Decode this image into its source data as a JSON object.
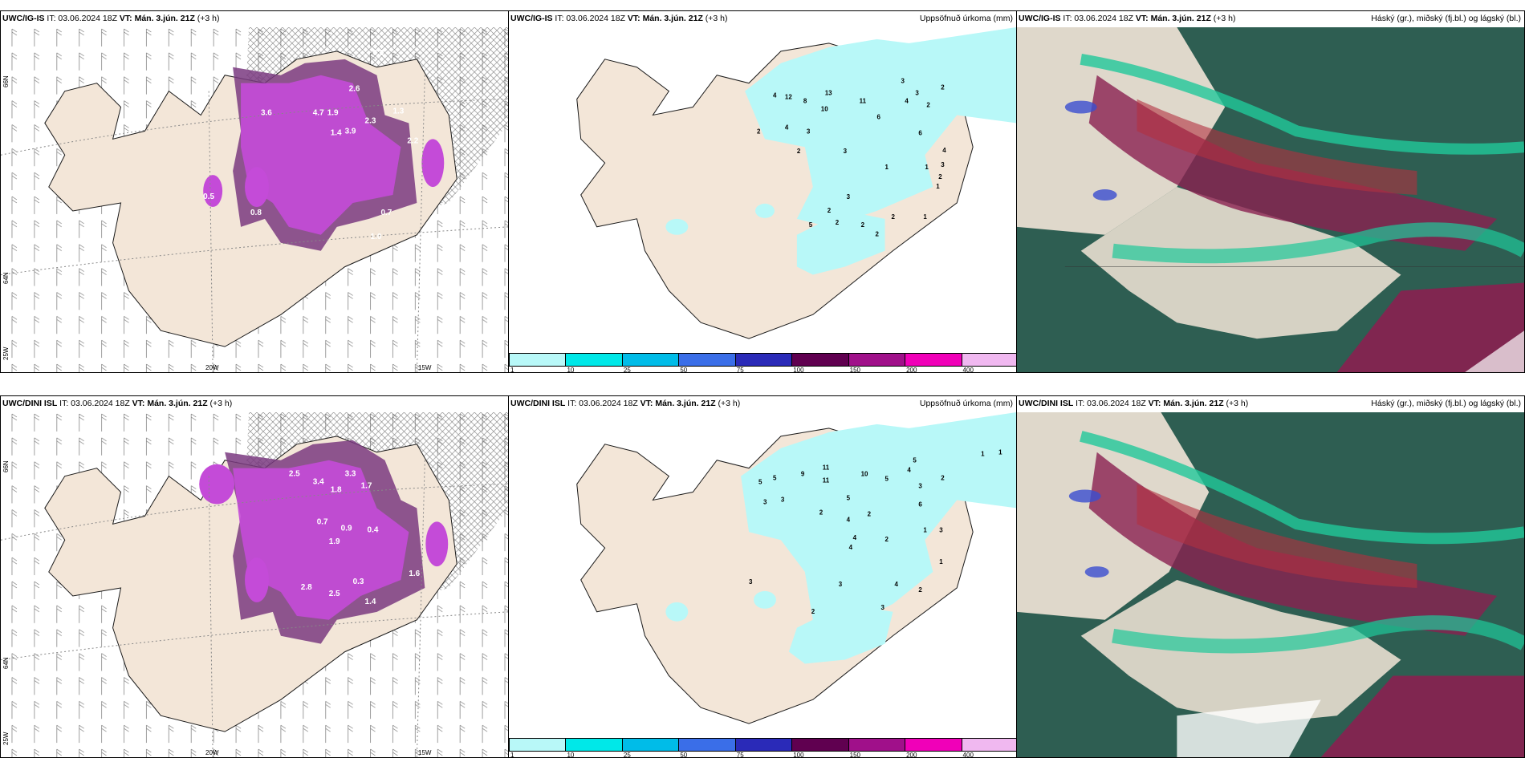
{
  "panels": [
    {
      "model": "UWC/IG-IS",
      "it": "IT: 03.06.2024 18Z",
      "vt": "VT: Mán. 3.jún. 21Z",
      "lead": "(+3 h)",
      "right": ""
    },
    {
      "model": "UWC/IG-IS",
      "it": "IT: 03.06.2024 18Z",
      "vt": "VT: Mán. 3.jún. 21Z",
      "lead": "(+3 h)",
      "right": "Uppsöfnuð úrkoma (mm)"
    },
    {
      "model": "UWC/IG-IS",
      "it": "IT: 03.06.2024 18Z",
      "vt": "VT: Mán. 3.jún. 21Z",
      "lead": "(+3 h)",
      "right": "Háský (gr.), miðský (fj.bl.) og lágský (bl.)"
    },
    {
      "model": "UWC/DINI ISL",
      "it": "IT: 03.06.2024 18Z",
      "vt": "VT: Mán. 3.jún. 21Z",
      "lead": "(+3 h)",
      "right": ""
    },
    {
      "model": "UWC/DINI ISL",
      "it": "IT: 03.06.2024 18Z",
      "vt": "VT: Mán. 3.jún. 21Z",
      "lead": "(+3 h)",
      "right": "Uppsöfnuð úrkoma (mm)"
    },
    {
      "model": "UWC/DINI ISL",
      "it": "IT: 03.06.2024 18Z",
      "vt": "VT: Mán. 3.jún. 21Z",
      "lead": "(+3 h)",
      "right": "Háský (gr.), miðský (fj.bl.) og lágský (bl.)"
    }
  ],
  "axes": {
    "lat66": "66N",
    "lat64": "64N",
    "lon25": "25W",
    "lon20": "20W",
    "lon15": "15W"
  },
  "colorbar": {
    "ticks": [
      "1",
      "10",
      "25",
      "50",
      "75",
      "100",
      "150",
      "200",
      "400"
    ],
    "colors": [
      "#b8f8f8",
      "#00e8e8",
      "#00bce8",
      "#3a6ee8",
      "#2a2ab8",
      "#600050",
      "#a0108a",
      "#f000b8",
      "#f0b8f0"
    ]
  },
  "precip_labels_top": [
    "4",
    "12",
    "8",
    "13",
    "10",
    "11",
    "6",
    "4",
    "3",
    "2",
    "2",
    "3",
    "2",
    "4",
    "3",
    "2",
    "6",
    "3",
    "1",
    "1",
    "3",
    "4",
    "2",
    "1",
    "2",
    "2",
    "5",
    "2",
    "2",
    "2",
    "3",
    "1"
  ],
  "precip_labels_bottom": [
    "5",
    "5",
    "9",
    "11",
    "11",
    "10",
    "5",
    "4",
    "2",
    "1",
    "1",
    "3",
    "5",
    "3",
    "3",
    "2",
    "5",
    "4",
    "2",
    "6",
    "4",
    "2",
    "1",
    "3",
    "3",
    "2",
    "3",
    "4",
    "4",
    "2",
    "3",
    "1"
  ],
  "point_labels_top": [
    "2.6",
    "4.7",
    "1.9",
    "3.9",
    "1.4",
    "2.3",
    "1.3",
    "3.6",
    "2.2",
    "0.8",
    "0.2",
    "0.7",
    "1.0",
    "0.5"
  ],
  "point_labels_bottom": [
    "3.3",
    "2.5",
    "3.4",
    "1.8",
    "1.7",
    "0.9",
    "1.9",
    "0.4",
    "2.8",
    "2.5",
    "0.3",
    "1.4",
    "1.6",
    "0.7"
  ],
  "colors": {
    "land": "#f3e6d8",
    "coast": "#1a1a1a",
    "precip_light": "#b8f8f8",
    "magenta": "#c44bd8",
    "purple": "#7a3a80",
    "cloud_dark": "#2e5e52",
    "cloud_green": "#20c89a",
    "cloud_red": "#8a2050"
  }
}
